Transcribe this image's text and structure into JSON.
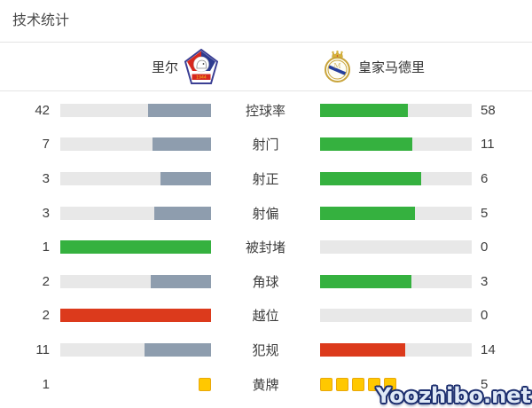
{
  "title": "技术统计",
  "teams": {
    "home": {
      "name": "里尔"
    },
    "away": {
      "name": "皇家马德里"
    }
  },
  "colors": {
    "green": "#35b13f",
    "red": "#dc3a1c",
    "slate": "#8e9dae",
    "track": "#e8e8e8",
    "yellow": "#ffc800",
    "none": "transparent"
  },
  "stats": [
    {
      "label": "控球率",
      "home": 42,
      "away": 58,
      "home_pct": 42,
      "away_pct": 58,
      "home_color": "slate",
      "away_color": "green"
    },
    {
      "label": "射门",
      "home": 7,
      "away": 11,
      "home_pct": 38.9,
      "away_pct": 61.1,
      "home_color": "slate",
      "away_color": "green"
    },
    {
      "label": "射正",
      "home": 3,
      "away": 6,
      "home_pct": 33.3,
      "away_pct": 66.7,
      "home_color": "slate",
      "away_color": "green"
    },
    {
      "label": "射偏",
      "home": 3,
      "away": 5,
      "home_pct": 37.5,
      "away_pct": 62.5,
      "home_color": "slate",
      "away_color": "green"
    },
    {
      "label": "被封堵",
      "home": 1,
      "away": 0,
      "home_pct": 100,
      "away_pct": 0,
      "home_color": "green",
      "away_color": "none"
    },
    {
      "label": "角球",
      "home": 2,
      "away": 3,
      "home_pct": 40,
      "away_pct": 60,
      "home_color": "slate",
      "away_color": "green"
    },
    {
      "label": "越位",
      "home": 2,
      "away": 0,
      "home_pct": 100,
      "away_pct": 0,
      "home_color": "red",
      "away_color": "none"
    },
    {
      "label": "犯规",
      "home": 11,
      "away": 14,
      "home_pct": 44,
      "away_pct": 56,
      "home_color": "slate",
      "away_color": "red"
    },
    {
      "label": "黄牌",
      "home": 1,
      "away": 5,
      "type": "cards"
    }
  ],
  "watermark": "Yoozhibo.net"
}
